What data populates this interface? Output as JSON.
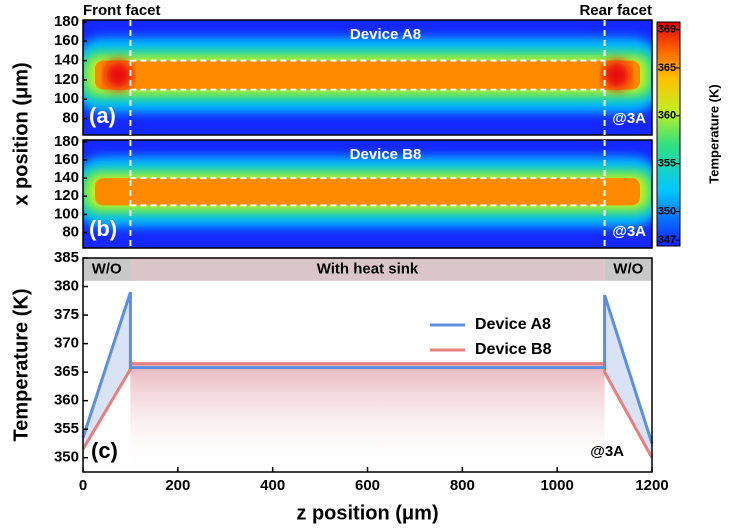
{
  "chart_data": [
    {
      "type": "heatmap",
      "title": "Device A8",
      "panel_label": "(a)",
      "annotation": "@3A",
      "ylabel": "x position (μm)",
      "facet_labels": [
        "Front facet",
        "Rear facet"
      ],
      "xlim": [
        0,
        1200
      ],
      "ylim": [
        63,
        182
      ],
      "yticks": [
        80,
        100,
        120,
        140,
        160,
        180
      ],
      "facet_z": [
        100,
        1100
      ],
      "stripe_x": [
        110,
        140
      ],
      "hot_facets": true
    },
    {
      "type": "heatmap",
      "title": "Device B8",
      "panel_label": "(b)",
      "annotation": "@3A",
      "xlim": [
        0,
        1200
      ],
      "ylim": [
        63,
        182
      ],
      "yticks": [
        80,
        100,
        120,
        140,
        160,
        180
      ],
      "facet_z": [
        100,
        1100
      ],
      "stripe_x": [
        110,
        140
      ],
      "hot_facets": false
    },
    {
      "type": "colorbar",
      "label": "Temperature (K)",
      "lim": [
        346.4,
        369.8
      ],
      "ticks": [
        347,
        350,
        355,
        360,
        365,
        369
      ]
    },
    {
      "type": "line",
      "panel_label": "(c)",
      "annotation": "@3A",
      "xlabel": "z position (μm)",
      "ylabel": "Temperature (K)",
      "xlim": [
        0,
        1200
      ],
      "xticks": [
        0,
        200,
        400,
        600,
        800,
        1000,
        1200
      ],
      "ylim": [
        347.5,
        385
      ],
      "yticks": [
        350,
        355,
        360,
        365,
        370,
        375,
        380,
        385
      ],
      "band_from": 381,
      "regions": [
        {
          "label": "W/O",
          "range": [
            0,
            100
          ]
        },
        {
          "label": "With heat sink",
          "range": [
            100,
            1100
          ]
        },
        {
          "label": "W/O",
          "range": [
            1100,
            1200
          ]
        }
      ],
      "series": [
        {
          "name": "Device A8",
          "color": "#5b8fe0",
          "x": [
            0,
            100,
            100,
            1100,
            1100,
            1200
          ],
          "values": [
            353.5,
            379,
            365.8,
            365.8,
            378.5,
            352.5
          ]
        },
        {
          "name": "Device B8",
          "color": "#e58080",
          "x": [
            0,
            100,
            100,
            1100,
            1100,
            1200
          ],
          "values": [
            351.5,
            365.5,
            366.5,
            366.5,
            365,
            350
          ]
        }
      ]
    }
  ]
}
